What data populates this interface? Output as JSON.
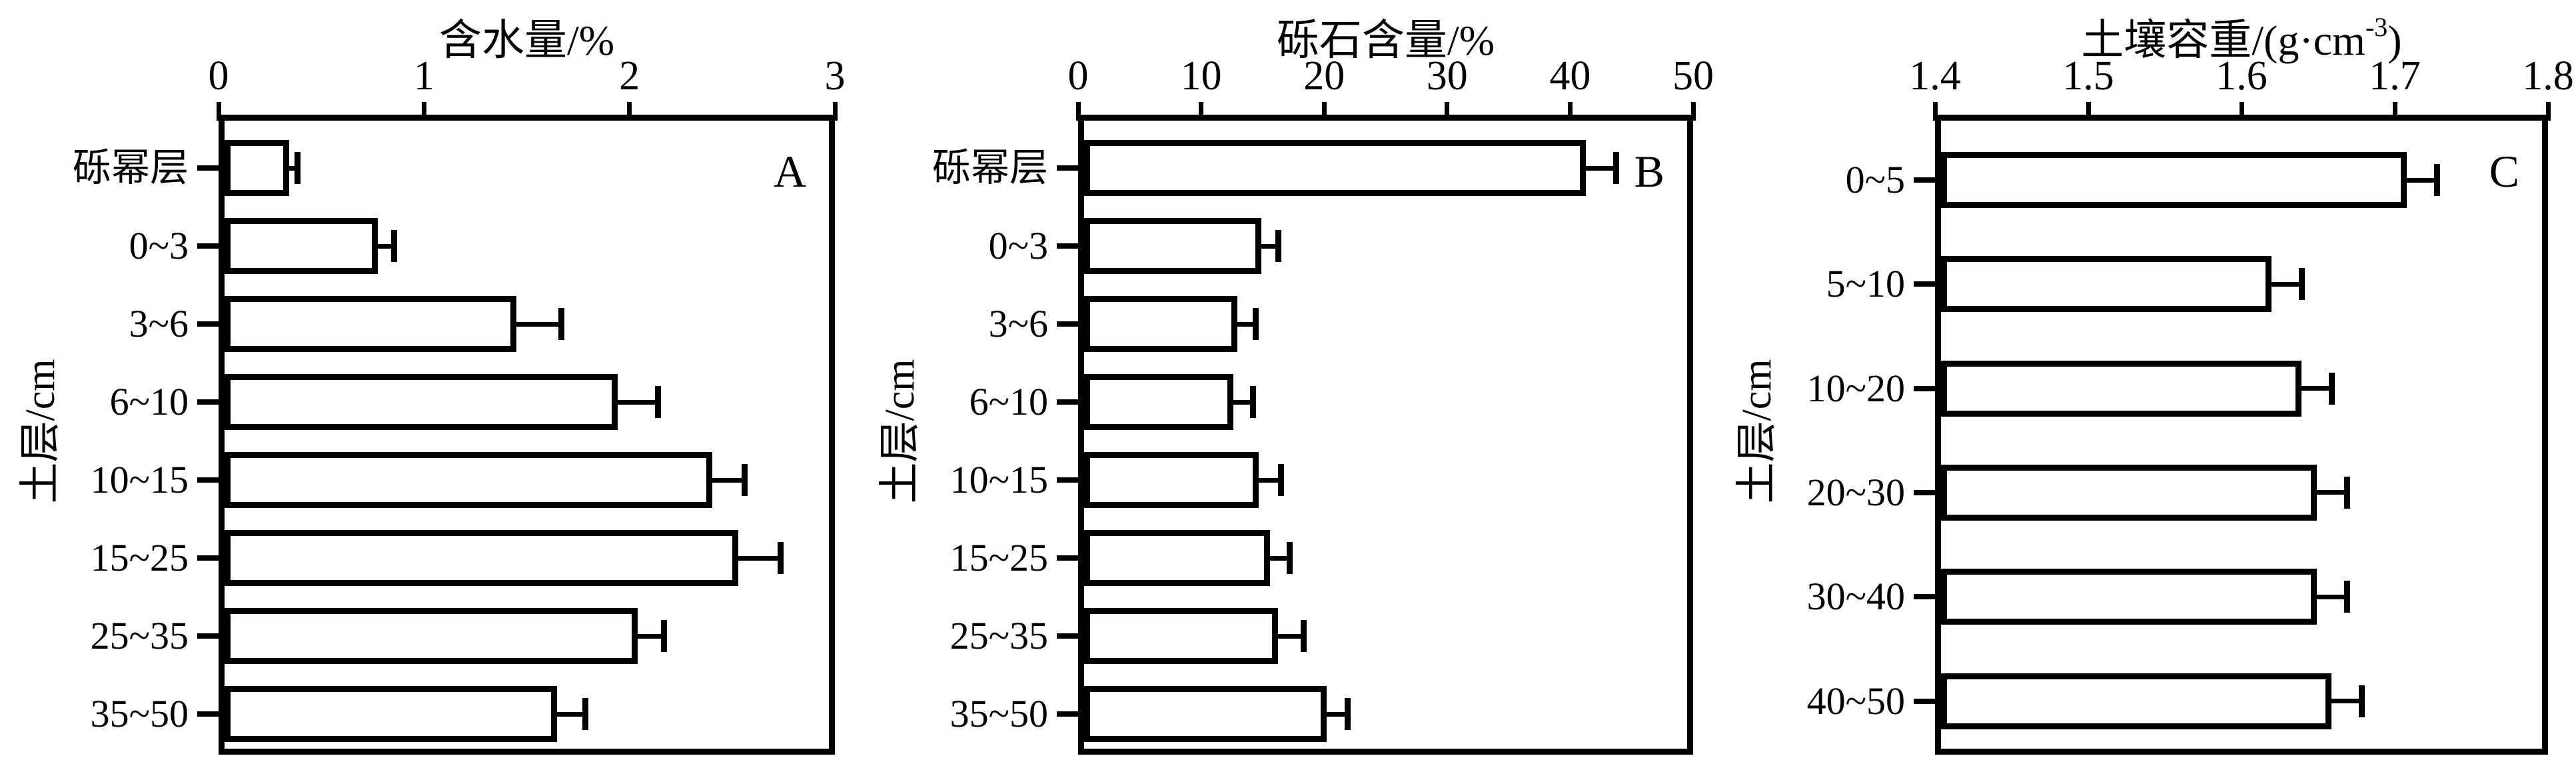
{
  "figure": {
    "background_color": "#ffffff",
    "ink_color": "#000000",
    "description": "Three horizontal bar panels (A, B, C) of soil layer properties with plus-side error bars"
  },
  "chart_data": [
    {
      "type": "bar",
      "orientation": "horizontal",
      "panel_label": "A",
      "title": "含水量/%",
      "title_sup": "",
      "title_end": "",
      "ylabel": "土层/cm",
      "xaxis_position": "top",
      "grid": false,
      "legend": null,
      "bar_fill": "#ffffff",
      "bar_border": "#000000",
      "error_direction": "plus",
      "categories": [
        "砾幂层",
        "0~3",
        "3~6",
        "6~10",
        "10~15",
        "15~25",
        "25~35",
        "35~50"
      ],
      "values": [
        0.32,
        0.76,
        1.45,
        1.95,
        2.42,
        2.55,
        2.05,
        1.65
      ],
      "errors": [
        0.04,
        0.08,
        0.22,
        0.2,
        0.16,
        0.21,
        0.13,
        0.14
      ],
      "xlim": [
        0,
        3
      ],
      "xtick_values": [
        0,
        1,
        2,
        3
      ],
      "xtick_labels": [
        "0",
        "1",
        "2",
        "3"
      ]
    },
    {
      "type": "bar",
      "orientation": "horizontal",
      "panel_label": "B",
      "title": "砾石含量/%",
      "title_sup": "",
      "title_end": "",
      "ylabel": "土层/cm",
      "xaxis_position": "top",
      "grid": false,
      "legend": null,
      "bar_fill": "#ffffff",
      "bar_border": "#000000",
      "error_direction": "plus",
      "categories": [
        "砾幂层",
        "0~3",
        "3~6",
        "6~10",
        "10~15",
        "15~25",
        "25~35",
        "35~50"
      ],
      "values": [
        41.6,
        14.7,
        12.7,
        12.4,
        14.5,
        15.4,
        16.1,
        20.1
      ],
      "errors": [
        2.5,
        1.4,
        1.5,
        1.6,
        1.8,
        1.6,
        2.1,
        1.7
      ],
      "xlim": [
        0,
        50
      ],
      "xtick_values": [
        0,
        10,
        20,
        30,
        40,
        50
      ],
      "xtick_labels": [
        "0",
        "10",
        "20",
        "30",
        "40",
        "50"
      ]
    },
    {
      "type": "bar",
      "orientation": "horizontal",
      "panel_label": "C",
      "title": "土壤容重/(g·cm",
      "title_sup": "-3",
      "title_end": ")",
      "ylabel": "土层/cm",
      "xaxis_position": "top",
      "grid": false,
      "legend": null,
      "bar_fill": "#ffffff",
      "bar_border": "#000000",
      "error_direction": "plus",
      "categories": [
        "0~5",
        "5~10",
        "10~20",
        "20~30",
        "30~40",
        "40~50"
      ],
      "values": [
        1.71,
        1.62,
        1.64,
        1.65,
        1.65,
        1.66
      ],
      "errors": [
        0.02,
        0.02,
        0.02,
        0.02,
        0.02,
        0.02
      ],
      "xlim": [
        1.4,
        1.8
      ],
      "xtick_values": [
        1.4,
        1.5,
        1.6,
        1.7,
        1.8
      ],
      "xtick_labels": [
        "1.4",
        "1.5",
        "1.6",
        "1.7",
        "1.8"
      ]
    }
  ]
}
